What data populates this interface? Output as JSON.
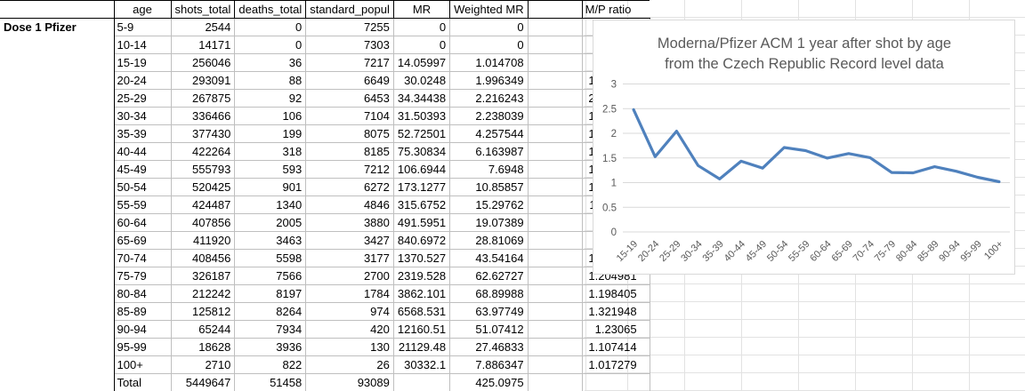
{
  "sheet": {
    "row_group_label": "Dose 1 Pfizer",
    "columns": [
      "age",
      "shots_total",
      "deaths_total",
      "standard_popul",
      "MR",
      "Weighted MR",
      "M/P ratio"
    ],
    "rows": [
      [
        "5-9",
        "2544",
        "0",
        "7255",
        "0",
        "0",
        ""
      ],
      [
        "10-14",
        "14171",
        "0",
        "7303",
        "0",
        "0",
        ""
      ],
      [
        "15-19",
        "256046",
        "36",
        "7217",
        "14.05997",
        "1.014708",
        "2.47948"
      ],
      [
        "20-24",
        "293091",
        "88",
        "6649",
        "30.0248",
        "1.996349",
        "1.526288"
      ],
      [
        "25-29",
        "267875",
        "92",
        "6453",
        "34.34438",
        "2.216243",
        "2.042619"
      ],
      [
        "30-34",
        "336466",
        "106",
        "7104",
        "31.50393",
        "2.238039",
        "1.345526"
      ],
      [
        "35-39",
        "377430",
        "199",
        "8075",
        "52.72501",
        "4.257544",
        "1.074329"
      ],
      [
        "40-44",
        "422264",
        "318",
        "8185",
        "75.30834",
        "6.163987",
        "1.434827"
      ],
      [
        "45-49",
        "555793",
        "593",
        "7212",
        "106.6944",
        "7.6948",
        "1.292914"
      ],
      [
        "50-54",
        "520425",
        "901",
        "6272",
        "173.1277",
        "10.85857",
        "1.712345"
      ],
      [
        "55-59",
        "424487",
        "1340",
        "4846",
        "315.6752",
        "15.29762",
        "1.649114"
      ],
      [
        "60-64",
        "407856",
        "2005",
        "3880",
        "491.5951",
        "19.07389",
        "1.49686"
      ],
      [
        "65-69",
        "411920",
        "3463",
        "3427",
        "840.6972",
        "28.81069",
        "1.58904"
      ],
      [
        "70-74",
        "408456",
        "5598",
        "3177",
        "1370.527",
        "43.54164",
        "1.505622"
      ],
      [
        "75-79",
        "326187",
        "7566",
        "2700",
        "2319.528",
        "62.62727",
        "1.204981"
      ],
      [
        "80-84",
        "212242",
        "8197",
        "1784",
        "3862.101",
        "68.89988",
        "1.198405"
      ],
      [
        "85-89",
        "125812",
        "8264",
        "974",
        "6568.531",
        "63.97749",
        "1.321948"
      ],
      [
        "90-94",
        "65244",
        "7934",
        "420",
        "12160.51",
        "51.07412",
        "1.23065"
      ],
      [
        "95-99",
        "18628",
        "3936",
        "130",
        "21129.48",
        "27.46833",
        "1.107414"
      ],
      [
        "100+",
        "2710",
        "822",
        "26",
        "30332.1",
        "7.886347",
        "1.017279"
      ],
      [
        "Total",
        "5449647",
        "51458",
        "93089",
        "",
        "425.0975",
        ""
      ]
    ]
  },
  "chart_data": {
    "type": "line",
    "title": "Moderna/Pfizer ACM 1 year after shot by age from the Czech Republic Record level data",
    "title_lines": [
      "Moderna/Pfizer ACM 1 year after shot by age",
      "from the Czech Republic Record level data"
    ],
    "categories": [
      "15-19",
      "20-24",
      "25-29",
      "30-34",
      "35-39",
      "40-44",
      "45-49",
      "50-54",
      "55-59",
      "60-64",
      "65-69",
      "70-74",
      "75-79",
      "80-84",
      "85-89",
      "90-94",
      "95-99",
      "100+"
    ],
    "series": [
      {
        "name": "M/P ratio",
        "values": [
          2.47948,
          1.526288,
          2.042619,
          1.345526,
          1.074329,
          1.434827,
          1.292914,
          1.712345,
          1.649114,
          1.49686,
          1.58904,
          1.505622,
          1.204981,
          1.198405,
          1.321948,
          1.23065,
          1.107414,
          1.017279
        ]
      }
    ],
    "ylim": [
      0,
      3
    ],
    "yticks": [
      "0",
      "0.5",
      "1",
      "1.5",
      "2",
      "2.5",
      "3"
    ],
    "grid": true,
    "legend": "none",
    "xlabel": "",
    "ylabel": ""
  },
  "colors": {
    "line": "#4F81BD",
    "chart_text": "#595959",
    "chart_grid": "#d9d9d9",
    "table_grid": "#bfbfbf",
    "table_border": "#000000"
  }
}
